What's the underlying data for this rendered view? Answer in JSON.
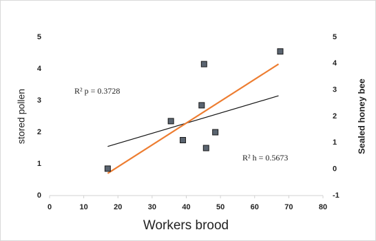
{
  "chart_data": {
    "type": "scatter",
    "x_label": "Workers brood",
    "y_label": "stored pollen",
    "y2_label": "Sealed honey bee",
    "annotations": [
      "R² p = 0.3728",
      "R² h = 0.5673"
    ],
    "series": [
      {
        "color": "#5a6470",
        "x": [
          17,
          35.5,
          39,
          44.5,
          45.2,
          45.8,
          48.5,
          67.5
        ],
        "values": [
          0.85,
          2.35,
          1.75,
          2.85,
          4.15,
          1.5,
          2.0,
          4.55
        ]
      }
    ],
    "trendlines": [
      {
        "color": "#111111",
        "x": [
          17,
          67
        ],
        "values": [
          1.55,
          3.15
        ]
      },
      {
        "color": "#ed7d31",
        "x": [
          17,
          67
        ],
        "values": [
          0.7,
          4.15
        ]
      }
    ],
    "xlim": [
      0,
      80
    ],
    "xticks": [
      0,
      10,
      20,
      30,
      40,
      50,
      60,
      70,
      80
    ],
    "ylim": [
      0,
      5
    ],
    "yticks": [
      0,
      1,
      2,
      3,
      4,
      5
    ],
    "y2lim": [
      -1,
      5
    ],
    "y2ticks": [
      -1,
      0,
      1,
      2,
      3,
      4,
      5
    ]
  }
}
